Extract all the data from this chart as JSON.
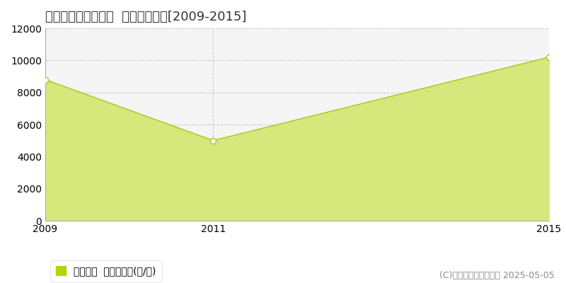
{
  "title": "度会郡南伊勢町河内  農地価格推移[2009-2015]",
  "x_values": [
    2009,
    2011,
    2015
  ],
  "y_values": [
    8800,
    5000,
    10200
  ],
  "line_color": "#b0cc30",
  "fill_color": "#d6e87c",
  "fill_alpha": 1.0,
  "marker_color": "white",
  "marker_edge_color": "#b0cc30",
  "xlim": [
    2009,
    2015
  ],
  "ylim": [
    0,
    12000
  ],
  "yticks": [
    0,
    2000,
    4000,
    6000,
    8000,
    10000,
    12000
  ],
  "xticks": [
    2009,
    2011,
    2015
  ],
  "grid_color": "#cccccc",
  "grid_style": "--",
  "plot_bg_color": "#f5f5f5",
  "fig_bg_color": "#ffffff",
  "legend_label": "農地価格  平均坪単価(円/坪)",
  "legend_color": "#b8d400",
  "copyright_text": "(C)土地価格ドットコム 2025-05-05",
  "title_fontsize": 13,
  "axis_fontsize": 10,
  "legend_fontsize": 10,
  "copyright_fontsize": 9
}
